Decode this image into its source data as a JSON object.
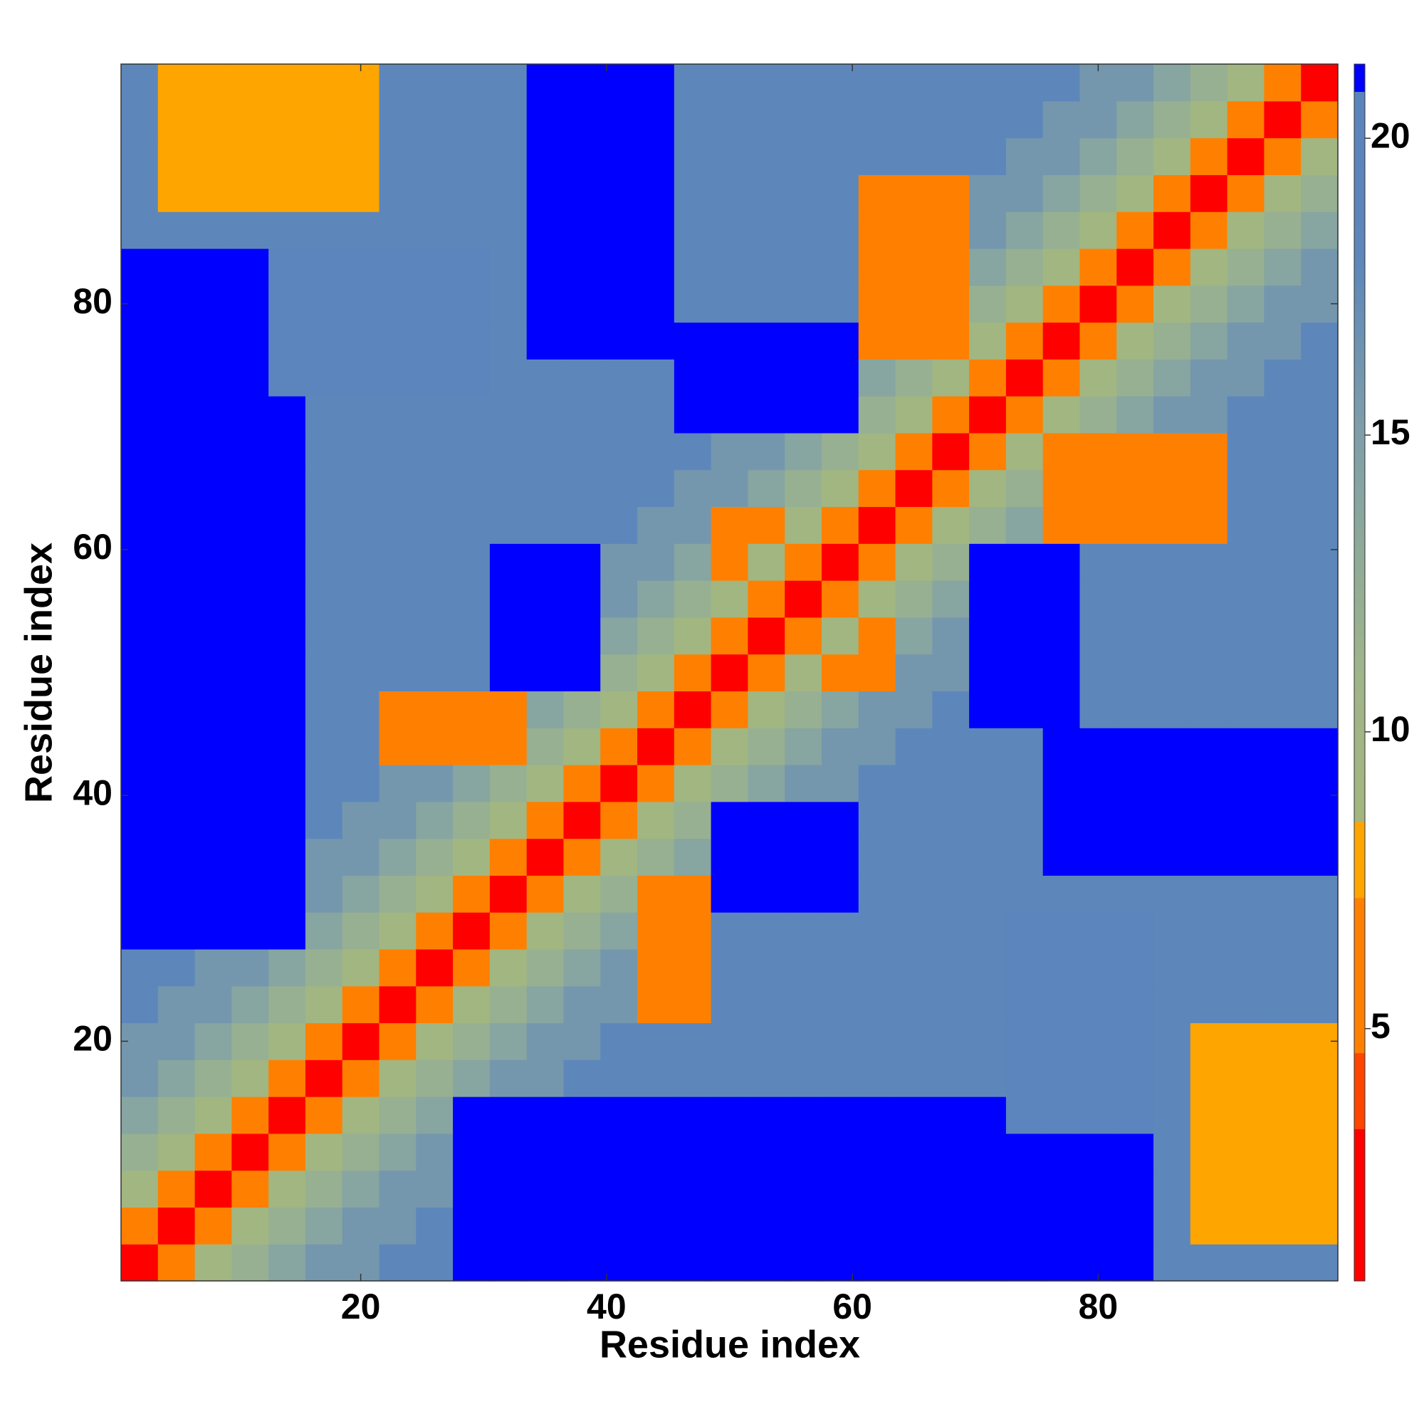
{
  "chart_data": {
    "type": "heatmap",
    "xlabel": "Residue index",
    "ylabel": "Residue index",
    "x": [
      2,
      5,
      8,
      11,
      14,
      17,
      20,
      23,
      26,
      29,
      32,
      35,
      38,
      41,
      44,
      47,
      50,
      53,
      56,
      59,
      62,
      65,
      68,
      71,
      74,
      77,
      80,
      83,
      86,
      89,
      92,
      95,
      98
    ],
    "y": [
      2,
      5,
      8,
      11,
      14,
      17,
      20,
      23,
      26,
      29,
      32,
      35,
      38,
      41,
      44,
      47,
      50,
      53,
      56,
      59,
      62,
      65,
      68,
      71,
      74,
      77,
      80,
      83,
      86,
      89,
      92,
      95,
      98
    ],
    "xlim": [
      0.5,
      99.5
    ],
    "ylim": [
      0.5,
      99.5
    ],
    "xticks": [
      20,
      40,
      60,
      80
    ],
    "yticks": [
      20,
      40,
      60,
      80
    ],
    "zlim": [
      0.75,
      21.25
    ],
    "zticks": [
      5,
      10,
      15,
      20
    ],
    "colorscale": [
      {
        "value": 0.75,
        "color": "#ff0000"
      },
      {
        "value": 3.3,
        "color": "#ff0000"
      },
      {
        "value": 3.3,
        "color": "#ff4500"
      },
      {
        "value": 4.6,
        "color": "#ff4500"
      },
      {
        "value": 4.6,
        "color": "#ff8000"
      },
      {
        "value": 7.2,
        "color": "#ff8000"
      },
      {
        "value": 7.2,
        "color": "#ffa500"
      },
      {
        "value": 8.5,
        "color": "#ffa500"
      },
      {
        "value": 8.5,
        "color": "#a3b67f"
      },
      {
        "value": 11,
        "color": "#9fb58a"
      },
      {
        "value": 15,
        "color": "#7f9fa8"
      },
      {
        "value": 18,
        "color": "#5d87bb"
      },
      {
        "value": 20.8,
        "color": "#5a84bc"
      },
      {
        "value": 20.8,
        "color": "#0000ff"
      },
      {
        "value": 21.25,
        "color": "#0000ff"
      }
    ],
    "z": [
      [
        2,
        5,
        9,
        12,
        14,
        16,
        16,
        18,
        18,
        21,
        21,
        21,
        21,
        21,
        21,
        21,
        21,
        21,
        21,
        21,
        21,
        21,
        21,
        21,
        21,
        21,
        21,
        21,
        18,
        18,
        18,
        18,
        18
      ],
      [
        5,
        2,
        5,
        9,
        12,
        14,
        16,
        16,
        18,
        21,
        21,
        21,
        21,
        21,
        21,
        21,
        21,
        21,
        21,
        21,
        21,
        21,
        21,
        21,
        21,
        21,
        21,
        21,
        18,
        8,
        8,
        8,
        8
      ],
      [
        9,
        5,
        2,
        5,
        9,
        12,
        14,
        16,
        16,
        21,
        21,
        21,
        21,
        21,
        21,
        21,
        21,
        21,
        21,
        21,
        21,
        21,
        21,
        21,
        21,
        21,
        21,
        21,
        18,
        8,
        8,
        8,
        8
      ],
      [
        12,
        9,
        5,
        2,
        5,
        9,
        12,
        14,
        16,
        21,
        21,
        21,
        21,
        21,
        21,
        21,
        21,
        21,
        21,
        21,
        21,
        21,
        21,
        21,
        21,
        21,
        21,
        21,
        18,
        8,
        8,
        8,
        8
      ],
      [
        14,
        12,
        9,
        5,
        2,
        5,
        9,
        12,
        14,
        21,
        21,
        21,
        21,
        21,
        21,
        21,
        21,
        21,
        21,
        21,
        21,
        21,
        21,
        21,
        20,
        20,
        20,
        20,
        18,
        8,
        8,
        8,
        8
      ],
      [
        16,
        14,
        12,
        9,
        5,
        2,
        5,
        9,
        12,
        14,
        16,
        16,
        18,
        18,
        18,
        18,
        18,
        18,
        18,
        18,
        18,
        18,
        18,
        18,
        20,
        20,
        20,
        20,
        18,
        8,
        8,
        8,
        8
      ],
      [
        16,
        16,
        14,
        12,
        9,
        5,
        2,
        5,
        9,
        12,
        14,
        16,
        16,
        18,
        18,
        18,
        18,
        18,
        18,
        18,
        18,
        18,
        18,
        18,
        20,
        20,
        20,
        20,
        18,
        8,
        8,
        8,
        8
      ],
      [
        18,
        16,
        16,
        14,
        12,
        9,
        5,
        2,
        5,
        9,
        12,
        14,
        16,
        16,
        7,
        7,
        18,
        18,
        18,
        18,
        18,
        18,
        18,
        18,
        20,
        20,
        20,
        20,
        18,
        18,
        18,
        18,
        18
      ],
      [
        18,
        18,
        16,
        16,
        14,
        12,
        9,
        5,
        2,
        5,
        9,
        12,
        14,
        16,
        7,
        7,
        18,
        18,
        18,
        18,
        18,
        18,
        18,
        18,
        20,
        20,
        20,
        20,
        18,
        18,
        18,
        18,
        18
      ],
      [
        21,
        21,
        21,
        21,
        21,
        14,
        12,
        9,
        5,
        2,
        5,
        9,
        12,
        14,
        7,
        7,
        18,
        18,
        18,
        18,
        18,
        18,
        18,
        18,
        20,
        20,
        20,
        20,
        18,
        18,
        18,
        18,
        18
      ],
      [
        21,
        21,
        21,
        21,
        21,
        16,
        14,
        12,
        9,
        5,
        2,
        5,
        9,
        12,
        7,
        7,
        21,
        21,
        21,
        21,
        18,
        18,
        18,
        18,
        18,
        18,
        18,
        18,
        18,
        18,
        18,
        18,
        18
      ],
      [
        21,
        21,
        21,
        21,
        21,
        16,
        16,
        14,
        12,
        9,
        5,
        2,
        5,
        9,
        12,
        14,
        21,
        21,
        21,
        21,
        18,
        18,
        18,
        18,
        18,
        21,
        21,
        21,
        21,
        21,
        21,
        21,
        21
      ],
      [
        21,
        21,
        21,
        21,
        21,
        18,
        16,
        16,
        14,
        12,
        9,
        5,
        2,
        5,
        9,
        12,
        21,
        21,
        21,
        21,
        18,
        18,
        18,
        18,
        18,
        21,
        21,
        21,
        21,
        21,
        21,
        21,
        21
      ],
      [
        21,
        21,
        21,
        21,
        21,
        18,
        18,
        16,
        16,
        14,
        12,
        9,
        5,
        2,
        5,
        9,
        12,
        14,
        16,
        16,
        18,
        18,
        18,
        18,
        18,
        21,
        21,
        21,
        21,
        21,
        21,
        21,
        21
      ],
      [
        21,
        21,
        21,
        21,
        21,
        18,
        18,
        7,
        7,
        7,
        7,
        12,
        9,
        5,
        2,
        5,
        9,
        12,
        14,
        16,
        16,
        18,
        18,
        18,
        18,
        21,
        21,
        21,
        21,
        21,
        21,
        21,
        21
      ],
      [
        21,
        21,
        21,
        21,
        21,
        18,
        18,
        7,
        7,
        7,
        7,
        14,
        12,
        9,
        5,
        2,
        5,
        9,
        12,
        14,
        16,
        16,
        18,
        21,
        21,
        21,
        18,
        18,
        18,
        18,
        18,
        18,
        18
      ],
      [
        21,
        21,
        21,
        21,
        21,
        18,
        18,
        18,
        18,
        18,
        21,
        21,
        21,
        12,
        9,
        5,
        2,
        5,
        9,
        7,
        7,
        16,
        16,
        21,
        21,
        21,
        18,
        18,
        18,
        18,
        18,
        18,
        18
      ],
      [
        21,
        21,
        21,
        21,
        21,
        18,
        18,
        18,
        18,
        18,
        21,
        21,
        21,
        14,
        12,
        9,
        5,
        2,
        5,
        9,
        7,
        14,
        16,
        21,
        21,
        21,
        18,
        18,
        18,
        18,
        18,
        18,
        18
      ],
      [
        21,
        21,
        21,
        21,
        21,
        18,
        18,
        18,
        18,
        18,
        21,
        21,
        21,
        16,
        14,
        12,
        9,
        5,
        2,
        5,
        9,
        12,
        14,
        21,
        21,
        21,
        18,
        18,
        18,
        18,
        18,
        18,
        18
      ],
      [
        21,
        21,
        21,
        21,
        21,
        18,
        18,
        18,
        18,
        18,
        21,
        21,
        21,
        16,
        16,
        14,
        7,
        9,
        5,
        2,
        5,
        9,
        12,
        21,
        21,
        21,
        18,
        18,
        18,
        18,
        18,
        18,
        18
      ],
      [
        21,
        21,
        21,
        21,
        21,
        18,
        18,
        18,
        18,
        18,
        18,
        18,
        18,
        18,
        16,
        16,
        7,
        7,
        9,
        5,
        2,
        5,
        9,
        12,
        14,
        7,
        7,
        7,
        7,
        7,
        18,
        18,
        18
      ],
      [
        21,
        21,
        21,
        21,
        21,
        18,
        18,
        18,
        18,
        18,
        18,
        18,
        18,
        18,
        18,
        16,
        16,
        14,
        12,
        9,
        5,
        2,
        5,
        9,
        12,
        7,
        7,
        7,
        7,
        7,
        18,
        18,
        18
      ],
      [
        21,
        21,
        21,
        21,
        21,
        18,
        18,
        18,
        18,
        18,
        18,
        18,
        18,
        18,
        18,
        18,
        16,
        16,
        14,
        12,
        9,
        5,
        2,
        5,
        9,
        7,
        7,
        7,
        7,
        7,
        18,
        18,
        18
      ],
      [
        21,
        21,
        21,
        21,
        21,
        18,
        18,
        18,
        18,
        18,
        18,
        18,
        18,
        18,
        18,
        21,
        21,
        21,
        21,
        21,
        12,
        9,
        5,
        2,
        5,
        9,
        12,
        14,
        16,
        16,
        18,
        18,
        18
      ],
      [
        21,
        21,
        21,
        21,
        20,
        20,
        20,
        20,
        20,
        20,
        18,
        18,
        18,
        18,
        18,
        21,
        21,
        21,
        21,
        21,
        14,
        12,
        9,
        5,
        2,
        5,
        9,
        12,
        14,
        16,
        16,
        18,
        18
      ],
      [
        21,
        21,
        21,
        21,
        20,
        20,
        20,
        20,
        20,
        20,
        18,
        21,
        21,
        21,
        21,
        21,
        21,
        21,
        21,
        21,
        7,
        7,
        7,
        9,
        5,
        2,
        5,
        9,
        12,
        14,
        16,
        16,
        18
      ],
      [
        21,
        21,
        21,
        21,
        20,
        20,
        20,
        20,
        20,
        20,
        18,
        21,
        21,
        21,
        21,
        18,
        18,
        18,
        18,
        18,
        7,
        7,
        7,
        12,
        9,
        5,
        2,
        5,
        9,
        12,
        14,
        16,
        16
      ],
      [
        21,
        21,
        21,
        21,
        20,
        20,
        20,
        20,
        20,
        20,
        18,
        21,
        21,
        21,
        21,
        18,
        18,
        18,
        18,
        18,
        7,
        7,
        7,
        14,
        12,
        9,
        5,
        2,
        5,
        9,
        12,
        14,
        16
      ],
      [
        18,
        18,
        18,
        18,
        18,
        18,
        18,
        18,
        18,
        18,
        18,
        21,
        21,
        21,
        21,
        18,
        18,
        18,
        18,
        18,
        7,
        7,
        7,
        16,
        14,
        12,
        9,
        5,
        2,
        5,
        9,
        12,
        14
      ],
      [
        18,
        8,
        8,
        8,
        8,
        8,
        8,
        18,
        18,
        18,
        18,
        21,
        21,
        21,
        21,
        18,
        18,
        18,
        18,
        18,
        7,
        7,
        7,
        16,
        16,
        14,
        12,
        9,
        5,
        2,
        5,
        9,
        12
      ],
      [
        18,
        8,
        8,
        8,
        8,
        8,
        8,
        18,
        18,
        18,
        18,
        21,
        21,
        21,
        21,
        18,
        18,
        18,
        18,
        18,
        18,
        18,
        18,
        18,
        16,
        16,
        14,
        12,
        9,
        5,
        2,
        5,
        9
      ],
      [
        18,
        8,
        8,
        8,
        8,
        8,
        8,
        18,
        18,
        18,
        18,
        21,
        21,
        21,
        21,
        18,
        18,
        18,
        18,
        18,
        18,
        18,
        18,
        18,
        18,
        16,
        16,
        14,
        12,
        9,
        5,
        2,
        5
      ],
      [
        18,
        8,
        8,
        8,
        8,
        8,
        8,
        18,
        18,
        18,
        18,
        21,
        21,
        21,
        21,
        18,
        18,
        18,
        18,
        18,
        18,
        18,
        18,
        18,
        18,
        18,
        16,
        16,
        14,
        12,
        9,
        5,
        2
      ]
    ]
  }
}
